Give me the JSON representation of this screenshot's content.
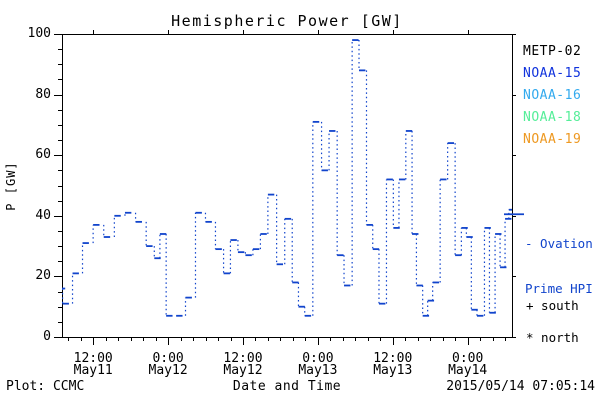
{
  "title": "Hemispheric Power [GW]",
  "colors": {
    "axis": "#000000",
    "data": "#1144cc",
    "background": "#ffffff"
  },
  "legend": {
    "items": [
      {
        "label": "METP-02",
        "color": "#000000"
      },
      {
        "label": "NOAA-15",
        "color": "#1133dd"
      },
      {
        "label": "NOAA-16",
        "color": "#33aaee"
      },
      {
        "label": "NOAA-18",
        "color": "#55ee99"
      },
      {
        "label": "NOAA-19",
        "color": "#ee9922"
      }
    ]
  },
  "ovation_label": {
    "line1": "- Ovation",
    "line2": "Prime HPI",
    "color": "#1144cc",
    "marker_value_gw": 40.5
  },
  "hemisphere_markers": {
    "south": "+ south",
    "north": "* north"
  },
  "footer": {
    "left": "Plot: CCMC",
    "right": "2015/05/14 07:05:14"
  },
  "chart_data": {
    "type": "line",
    "title": "Hemispheric Power [GW]",
    "xlabel": "Date and Time",
    "ylabel": "P [GW]",
    "ylim": [
      0,
      100
    ],
    "y_major_ticks": [
      0,
      20,
      40,
      60,
      80,
      100
    ],
    "y_minor_step": 5,
    "span_hours": 72.1,
    "x_minor_step_hours": 2,
    "grid": false,
    "legend_position": "right",
    "x_major_ticks": [
      {
        "hours": 5,
        "time": "12:00",
        "date": "May11"
      },
      {
        "hours": 17,
        "time": "0:00",
        "date": "May12"
      },
      {
        "hours": 29,
        "time": "12:00",
        "date": "May12"
      },
      {
        "hours": 41,
        "time": "0:00",
        "date": "May13"
      },
      {
        "hours": 53,
        "time": "12:00",
        "date": "May13"
      },
      {
        "hours": 65,
        "time": "0:00",
        "date": "May14"
      }
    ],
    "series": [
      {
        "name": "NOAA-15",
        "color": "#1144cc",
        "style": "horizontal dash per pass, dotted vertical connectors",
        "points_hours_gw": [
          [
            0.0,
            16
          ],
          [
            0.6,
            11
          ],
          [
            2.2,
            21
          ],
          [
            3.8,
            31
          ],
          [
            5.5,
            37
          ],
          [
            7.2,
            33
          ],
          [
            8.9,
            40
          ],
          [
            10.6,
            41
          ],
          [
            12.3,
            38
          ],
          [
            14.0,
            30
          ],
          [
            15.3,
            26
          ],
          [
            16.2,
            34
          ],
          [
            17.2,
            7
          ],
          [
            18.8,
            7
          ],
          [
            20.3,
            13
          ],
          [
            21.9,
            41
          ],
          [
            23.5,
            38
          ],
          [
            25.1,
            29
          ],
          [
            26.4,
            21
          ],
          [
            27.5,
            32
          ],
          [
            28.7,
            28
          ],
          [
            29.9,
            27
          ],
          [
            31.1,
            29
          ],
          [
            32.3,
            34
          ],
          [
            33.5,
            47
          ],
          [
            34.9,
            24
          ],
          [
            36.2,
            39
          ],
          [
            37.4,
            18
          ],
          [
            38.4,
            10
          ],
          [
            39.4,
            7
          ],
          [
            40.7,
            71
          ],
          [
            42.1,
            55
          ],
          [
            43.3,
            68
          ],
          [
            44.6,
            27
          ],
          [
            45.7,
            17
          ],
          [
            47.0,
            98
          ],
          [
            48.1,
            88
          ],
          [
            49.3,
            37
          ],
          [
            50.3,
            29
          ],
          [
            51.3,
            11
          ],
          [
            52.5,
            52
          ],
          [
            53.6,
            36
          ],
          [
            54.5,
            52
          ],
          [
            55.6,
            68
          ],
          [
            56.6,
            34
          ],
          [
            57.3,
            17
          ],
          [
            58.3,
            7
          ],
          [
            59.1,
            12
          ],
          [
            59.9,
            18
          ],
          [
            61.1,
            52
          ],
          [
            62.3,
            64
          ],
          [
            63.5,
            27
          ],
          [
            64.5,
            36
          ],
          [
            65.3,
            33
          ],
          [
            66.1,
            9
          ],
          [
            67.0,
            7
          ],
          [
            68.2,
            36
          ],
          [
            69.0,
            8
          ],
          [
            69.9,
            34
          ],
          [
            70.7,
            23
          ],
          [
            71.5,
            39
          ],
          [
            72.1,
            42
          ]
        ]
      }
    ]
  }
}
